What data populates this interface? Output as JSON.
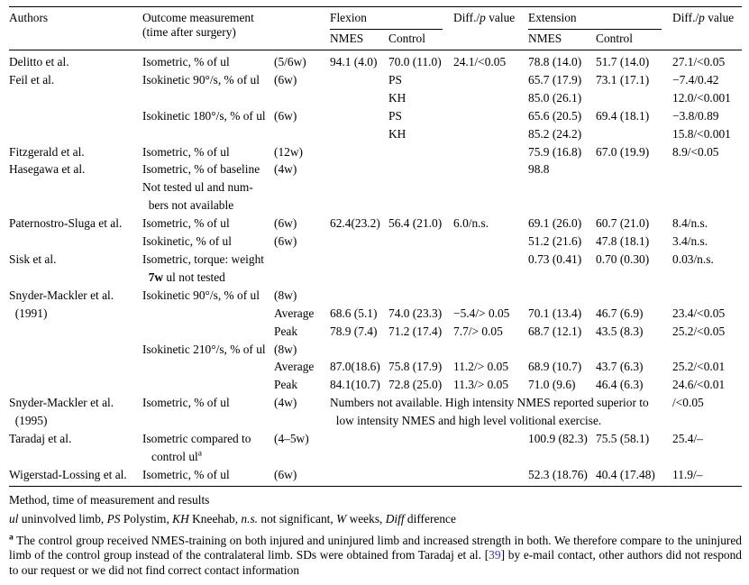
{
  "colors": {
    "text": "#000000",
    "background": "#ffffff",
    "reference_link": "#3333cc"
  },
  "header": {
    "authors": "Authors",
    "outcome": "Outcome measurement\n(time after surgery)",
    "flexion": "Flexion",
    "extension": "Extension",
    "nmes": "NMES",
    "control": "Control",
    "diff_prefix": "Diff./",
    "diff_italic": "p",
    "diff_suffix": " value"
  },
  "rows": [
    [
      "Delitto et al.",
      "Isometric, % of ul",
      "(5/6w)",
      "94.1 (4.0)",
      "70.0 (11.0)",
      "24.1/<0.05",
      "78.8 (14.0)",
      "51.7 (14.0)",
      "27.1/<0.05"
    ],
    [
      "Feil et al.",
      "Isokinetic 90°/s, % of ul",
      "(6w)",
      "",
      "PS",
      "",
      "65.7 (17.9)",
      "73.1 (17.1)",
      "−7.4/0.42"
    ],
    [
      "",
      "",
      "",
      "",
      "KH",
      "",
      "85.0 (26.1)",
      "",
      "12.0/<0.001"
    ],
    [
      "",
      "Isokinetic 180°/s, % of ul",
      "(6w)",
      "",
      "PS",
      "",
      "65.6 (20.5)",
      "69.4 (18.1)",
      "−3.8/0.89"
    ],
    [
      "",
      "",
      "",
      "",
      "KH",
      "",
      "85.2 (24.2)",
      "",
      "15.8/<0.001"
    ],
    [
      "Fitzgerald et al.",
      "Isometric, % of ul",
      "(12w)",
      "",
      "",
      "",
      "75.9 (16.8)",
      "67.0 (19.9)",
      "8.9/<0.05"
    ],
    [
      "Hasegawa et al.",
      "Isometric, % of baseline",
      "(4w)",
      "",
      "",
      "",
      "98.8",
      "",
      ""
    ],
    [
      "",
      "Not tested ul and num-\n  bers not available",
      "",
      "",
      "",
      "",
      "",
      "",
      ""
    ],
    [
      "Paternostro-Sluga et al.",
      "Isometric, % of ul",
      "(6w)",
      "62.4(23.2)",
      "56.4 (21.0)",
      "6.0/n.s.",
      "69.1 (26.0)",
      "60.7 (21.0)",
      "8.4/n.s."
    ],
    [
      "",
      "Isokinetic, % of ul",
      "(6w)",
      "",
      "",
      "",
      "51.2 (21.6)",
      "47.8 (18.1)",
      "3.4/n.s."
    ],
    [
      "Sisk et al.",
      "Isometric, torque: weight\n  **7w** ul not tested",
      "",
      "",
      "",
      "",
      "0.73 (0.41)",
      "0.70 (0.30)",
      "0.03/n.s."
    ],
    [
      "Snyder-Mackler et al.",
      "Isokinetic 90°/s, % of ul",
      "(8w)",
      "",
      "",
      "",
      "",
      "",
      ""
    ],
    [
      "  (1991)",
      "",
      "Average",
      "68.6 (5.1)",
      "74.0 (23.3)",
      "−5.4/> 0.05",
      "70.1 (13.4)",
      "46.7 (6.9)",
      "23.4/<0.05"
    ],
    [
      "",
      "",
      "Peak",
      "78.9 (7.4)",
      "71.2 (17.4)",
      "7.7/> 0.05",
      "68.7 (12.1)",
      "43.5 (8.3)",
      "25.2/<0.05"
    ],
    [
      "",
      "Isokinetic 210°/s, % of ul",
      "(8w)",
      "",
      "",
      "",
      "",
      "",
      ""
    ],
    [
      "",
      "",
      "Average",
      "87.0(18.6)",
      "75.8 (17.9)",
      "11.2/> 0.05",
      "68.9 (10.7)",
      "43.7 (6.3)",
      "25.2/<0.01"
    ],
    [
      "",
      "",
      "Peak",
      "84.1(10.7)",
      "72.8 (25.0)",
      "11.3/> 0.05",
      "71.0 (9.6)",
      "46.4 (6.3)",
      "24.6/<0.01"
    ],
    [
      "Snyder-Mackler et al.\n  (1995)",
      "Isometric, % of ul",
      "(4w)",
      {
        "t": "Numbers not available. High intensity NMES reported superior to\n  low intensity NMES and high level volitional exercise.",
        "cs": 5
      },
      "/<0.05"
    ],
    [
      "Taradaj et al.",
      "Isometric compared to",
      "(4–5w)",
      "",
      "",
      "",
      "100.9 (82.3)",
      "75.5 (58.1)",
      "25.4/–"
    ],
    [
      "",
      "   control ul^a^",
      "",
      "",
      "",
      "",
      "",
      "",
      ""
    ],
    [
      "Wigerstad-Lossing et al.",
      "Isometric, % of ul",
      "(6w)",
      "",
      "",
      "",
      "52.3 (18.76)",
      "40.4 (17.48)",
      "11.9/–"
    ]
  ],
  "footer": {
    "method_line": "Method, time of measurement and results",
    "abbrev_line": "//ul// uninvolved limb, //PS// Polystim, //KH// Kneehab, //n.s.// not significant, //W// weeks, //Diff// difference",
    "footnote_marker": "a",
    "footnote_text": " The control group received NMES-training on both injured and uninjured limb and increased strength in both. We therefore compare to the uninjured limb of the control group instead of the contralateral limb. SDs were obtained from Taradaj et al. [@@39@@] by e-mail contact, other authors did not respond to our request or we did not find correct contact information"
  }
}
